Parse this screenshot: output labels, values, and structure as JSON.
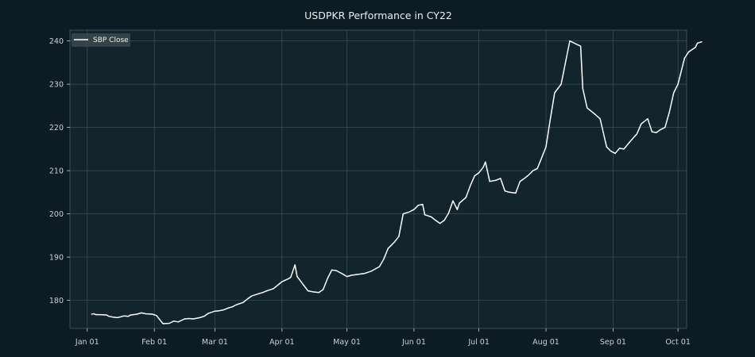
{
  "chart_data": {
    "type": "line",
    "title": "USDPKR Performance in CY22",
    "xlabel": "",
    "ylabel": "",
    "x_range": [
      "2021-12-24",
      "2022-10-05"
    ],
    "ylim": [
      173.5,
      242.5
    ],
    "x_ticks": [
      {
        "date": "2022-01-01",
        "label": "Jan 01"
      },
      {
        "date": "2022-02-01",
        "label": "Feb 01"
      },
      {
        "date": "2022-03-01",
        "label": "Mar 01"
      },
      {
        "date": "2022-04-01",
        "label": "Apr 01"
      },
      {
        "date": "2022-05-01",
        "label": "May 01"
      },
      {
        "date": "2022-06-01",
        "label": "Jun 01"
      },
      {
        "date": "2022-07-01",
        "label": "Jul 01"
      },
      {
        "date": "2022-08-01",
        "label": "Aug 01"
      },
      {
        "date": "2022-09-01",
        "label": "Sep 01"
      },
      {
        "date": "2022-10-01",
        "label": "Oct 01"
      }
    ],
    "y_ticks": [
      180,
      190,
      200,
      210,
      220,
      230,
      240
    ],
    "grid": true,
    "legend_position": "top-left",
    "series": [
      {
        "name": "SBP Close",
        "color": "#ffffff",
        "points": [
          [
            "2022-01-03",
            176.8
          ],
          [
            "2022-01-04",
            176.9
          ],
          [
            "2022-01-05",
            176.7
          ],
          [
            "2022-01-07",
            176.7
          ],
          [
            "2022-01-10",
            176.6
          ],
          [
            "2022-01-11",
            176.3
          ],
          [
            "2022-01-13",
            176.1
          ],
          [
            "2022-01-15",
            176.0
          ],
          [
            "2022-01-18",
            176.4
          ],
          [
            "2022-01-20",
            176.3
          ],
          [
            "2022-01-21",
            176.6
          ],
          [
            "2022-01-24",
            176.8
          ],
          [
            "2022-01-26",
            177.1
          ],
          [
            "2022-01-28",
            176.9
          ],
          [
            "2022-01-31",
            176.8
          ],
          [
            "2022-02-02",
            176.5
          ],
          [
            "2022-02-04",
            175.2
          ],
          [
            "2022-02-05",
            174.6
          ],
          [
            "2022-02-08",
            174.7
          ],
          [
            "2022-02-10",
            175.2
          ],
          [
            "2022-02-12",
            175.0
          ],
          [
            "2022-02-15",
            175.7
          ],
          [
            "2022-02-17",
            175.8
          ],
          [
            "2022-02-19",
            175.7
          ],
          [
            "2022-02-22",
            176.0
          ],
          [
            "2022-02-24",
            176.3
          ],
          [
            "2022-02-26",
            177.0
          ],
          [
            "2022-03-01",
            177.5
          ],
          [
            "2022-03-03",
            177.6
          ],
          [
            "2022-03-05",
            177.8
          ],
          [
            "2022-03-07",
            178.2
          ],
          [
            "2022-03-09",
            178.5
          ],
          [
            "2022-03-11",
            179.0
          ],
          [
            "2022-03-14",
            179.5
          ],
          [
            "2022-03-16",
            180.3
          ],
          [
            "2022-03-18",
            181.0
          ],
          [
            "2022-03-21",
            181.5
          ],
          [
            "2022-03-23",
            181.8
          ],
          [
            "2022-03-25",
            182.2
          ],
          [
            "2022-03-28",
            182.7
          ],
          [
            "2022-03-30",
            183.5
          ],
          [
            "2022-04-01",
            184.3
          ],
          [
            "2022-04-04",
            185.0
          ],
          [
            "2022-04-05",
            185.3
          ],
          [
            "2022-04-07",
            188.2
          ],
          [
            "2022-04-08",
            185.5
          ],
          [
            "2022-04-11",
            183.5
          ],
          [
            "2022-04-13",
            182.2
          ],
          [
            "2022-04-15",
            182.0
          ],
          [
            "2022-04-18",
            181.8
          ],
          [
            "2022-04-20",
            182.5
          ],
          [
            "2022-04-22",
            185.0
          ],
          [
            "2022-04-24",
            187.0
          ],
          [
            "2022-04-26",
            186.9
          ],
          [
            "2022-04-29",
            186.1
          ],
          [
            "2022-05-01",
            185.5
          ],
          [
            "2022-05-03",
            185.8
          ],
          [
            "2022-05-06",
            186.0
          ],
          [
            "2022-05-09",
            186.2
          ],
          [
            "2022-05-12",
            186.7
          ],
          [
            "2022-05-16",
            187.8
          ],
          [
            "2022-05-18",
            189.5
          ],
          [
            "2022-05-20",
            192.0
          ],
          [
            "2022-05-23",
            193.5
          ],
          [
            "2022-05-25",
            194.8
          ],
          [
            "2022-05-27",
            200.0
          ],
          [
            "2022-05-30",
            200.5
          ],
          [
            "2022-06-01",
            201.0
          ],
          [
            "2022-06-03",
            202.0
          ],
          [
            "2022-06-05",
            202.2
          ],
          [
            "2022-06-06",
            199.8
          ],
          [
            "2022-06-09",
            199.3
          ],
          [
            "2022-06-11",
            198.5
          ],
          [
            "2022-06-13",
            197.8
          ],
          [
            "2022-06-15",
            198.5
          ],
          [
            "2022-06-17",
            200.2
          ],
          [
            "2022-06-19",
            203.0
          ],
          [
            "2022-06-21",
            201.0
          ],
          [
            "2022-06-22",
            202.5
          ],
          [
            "2022-06-25",
            203.8
          ],
          [
            "2022-06-27",
            206.5
          ],
          [
            "2022-06-29",
            208.8
          ],
          [
            "2022-07-01",
            209.5
          ],
          [
            "2022-07-03",
            210.8
          ],
          [
            "2022-07-04",
            212.0
          ],
          [
            "2022-07-06",
            207.5
          ],
          [
            "2022-07-09",
            207.8
          ],
          [
            "2022-07-11",
            208.2
          ],
          [
            "2022-07-13",
            205.3
          ],
          [
            "2022-07-15",
            205.0
          ],
          [
            "2022-07-18",
            204.8
          ],
          [
            "2022-07-20",
            207.5
          ],
          [
            "2022-07-22",
            208.2
          ],
          [
            "2022-07-24",
            209.0
          ],
          [
            "2022-07-26",
            210.0
          ],
          [
            "2022-07-28",
            210.5
          ],
          [
            "2022-07-30",
            213.0
          ],
          [
            "2022-08-01",
            215.5
          ],
          [
            "2022-08-03",
            222.0
          ],
          [
            "2022-08-05",
            228.0
          ],
          [
            "2022-08-08",
            230.0
          ],
          [
            "2022-08-10",
            235.0
          ],
          [
            "2022-08-12",
            240.0
          ],
          [
            "2022-08-14",
            239.5
          ],
          [
            "2022-08-17",
            238.8
          ],
          [
            "2022-08-18",
            229.0
          ],
          [
            "2022-08-20",
            224.5
          ],
          [
            "2022-08-23",
            223.3
          ],
          [
            "2022-08-26",
            222.0
          ],
          [
            "2022-08-29",
            215.5
          ],
          [
            "2022-08-31",
            214.5
          ],
          [
            "2022-09-02",
            214.0
          ],
          [
            "2022-09-04",
            215.2
          ],
          [
            "2022-09-06",
            215.0
          ],
          [
            "2022-09-09",
            216.8
          ],
          [
            "2022-09-12",
            218.5
          ],
          [
            "2022-09-14",
            220.8
          ],
          [
            "2022-09-17",
            222.0
          ],
          [
            "2022-09-19",
            219.0
          ],
          [
            "2022-09-21",
            218.8
          ],
          [
            "2022-09-23",
            219.5
          ],
          [
            "2022-09-25",
            220.0
          ],
          [
            "2022-09-27",
            223.5
          ],
          [
            "2022-09-29",
            228.0
          ],
          [
            "2022-10-01",
            230.0
          ],
          [
            "2022-10-04",
            236.0
          ],
          [
            "2022-10-06",
            237.5
          ],
          [
            "2022-10-09",
            238.5
          ],
          [
            "2022-10-10",
            239.5
          ],
          [
            "2022-10-12",
            239.8
          ]
        ]
      }
    ]
  }
}
